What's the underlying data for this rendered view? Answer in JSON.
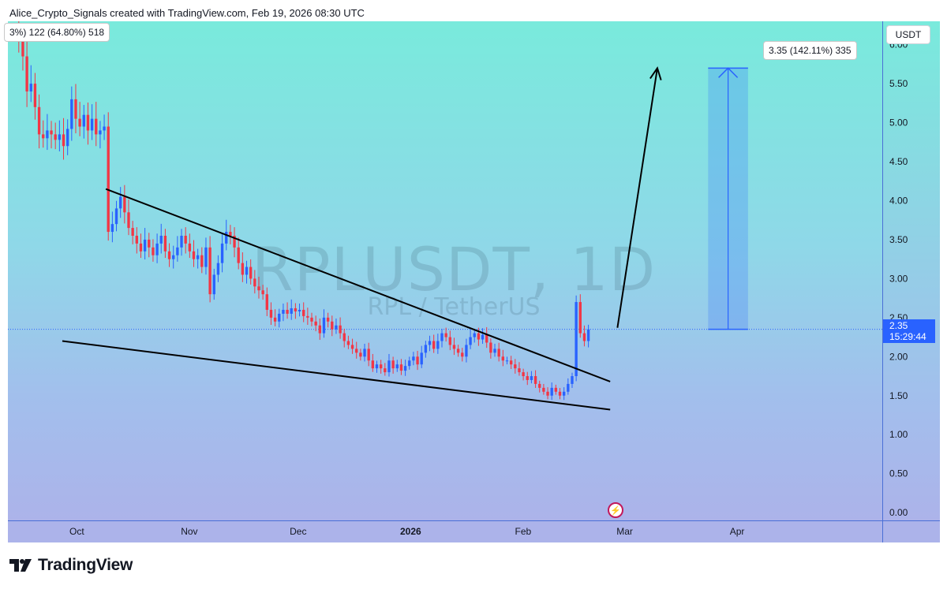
{
  "header": {
    "attribution": "Alice_Crypto_Signals created with TradingView.com, Feb 19, 2026 08:30 UTC"
  },
  "watermark": {
    "symbol": "RPLUSDT, 1D",
    "name": "RPL / TetherUS"
  },
  "labels": {
    "left_measure": "3%) 122 (64.80%) 518",
    "target_measure": "3.35 (142.11%) 335",
    "price_unit": "USDT"
  },
  "current_price": {
    "value": "2.35",
    "countdown": "15:29:44"
  },
  "brand": {
    "name": "TradingView"
  },
  "colors": {
    "up": "#2962ff",
    "down": "#f23645",
    "accent": "#2962ff"
  },
  "chart_data": {
    "type": "candlestick",
    "timeframe": "1D",
    "y_axis": {
      "ticks": [
        "0.00",
        "0.50",
        "1.00",
        "1.50",
        "2.00",
        "2.50",
        "3.00",
        "3.50",
        "4.00",
        "4.50",
        "5.00",
        "5.50",
        "6.00"
      ],
      "ylim": [
        -0.1,
        6.3
      ]
    },
    "x_axis": {
      "ticks": [
        "Oct",
        "Nov",
        "Dec",
        "2026",
        "Feb",
        "Mar",
        "Apr"
      ],
      "tick_dates": [
        "2025-10-01",
        "2025-11-01",
        "2025-12-01",
        "2026-01-01",
        "2026-02-01",
        "2026-03-01",
        "2026-04-01"
      ],
      "xlim": [
        "2025-09-12",
        "2026-05-11"
      ]
    },
    "series": [
      {
        "name": "RPLUSDT",
        "close": [
          6.05,
          5.85,
          5.4,
          5.5,
          5.2,
          4.85,
          4.8,
          4.9,
          4.85,
          4.78,
          4.85,
          4.7,
          4.92,
          5.3,
          5.05,
          4.95,
          5.1,
          4.9,
          5.05,
          4.85,
          4.9,
          4.95,
          3.6,
          3.7,
          3.9,
          4.05,
          3.85,
          3.65,
          3.55,
          3.45,
          3.35,
          3.5,
          3.4,
          3.3,
          3.45,
          3.55,
          3.35,
          3.25,
          3.3,
          3.4,
          3.55,
          3.45,
          3.35,
          3.25,
          3.3,
          3.15,
          3.4,
          2.8,
          3.05,
          3.2,
          3.45,
          3.6,
          3.55,
          3.4,
          3.2,
          3.05,
          3.15,
          3.0,
          2.9,
          2.85,
          2.8,
          2.6,
          2.5,
          2.45,
          2.55,
          2.6,
          2.55,
          2.62,
          2.58,
          2.6,
          2.52,
          2.5,
          2.45,
          2.4,
          2.3,
          2.5,
          2.45,
          2.35,
          2.4,
          2.3,
          2.2,
          2.15,
          2.1,
          2.05,
          2.0,
          2.1,
          1.95,
          1.85,
          1.9,
          1.85,
          1.8,
          1.95,
          1.85,
          1.9,
          1.82,
          1.88,
          1.95,
          2.0,
          1.9,
          2.05,
          2.15,
          2.2,
          2.1,
          2.2,
          2.3,
          2.25,
          2.15,
          2.1,
          2.05,
          2.0,
          2.15,
          2.25,
          2.3,
          2.22,
          2.28,
          2.18,
          2.05,
          2.1,
          2.0,
          1.95,
          1.95,
          1.9,
          1.85,
          1.8,
          1.75,
          1.7,
          1.75,
          1.65,
          1.6,
          1.55,
          1.5,
          1.6,
          1.55,
          1.5,
          1.55,
          1.65,
          1.75,
          2.7,
          2.3,
          2.2,
          2.35
        ],
        "last": 2.35
      }
    ],
    "annotations": {
      "upper_trendline": {
        "from": [
          "2025-10-09",
          4.15
        ],
        "to": [
          "2026-02-25",
          1.68
        ]
      },
      "lower_trendline": {
        "from": [
          "2025-09-27",
          2.2
        ],
        "to": [
          "2026-02-25",
          1.32
        ]
      },
      "projection_arrow": {
        "from": [
          "2026-02-27",
          2.37
        ],
        "to": [
          "2026-03-10",
          5.7
        ]
      },
      "target_range": {
        "from_date": "2026-03-24",
        "to_date": "2026-04-04",
        "low": 2.35,
        "high": 5.7,
        "change": "3.35 (142.11%) 335"
      },
      "current_price_line": 2.35
    }
  }
}
